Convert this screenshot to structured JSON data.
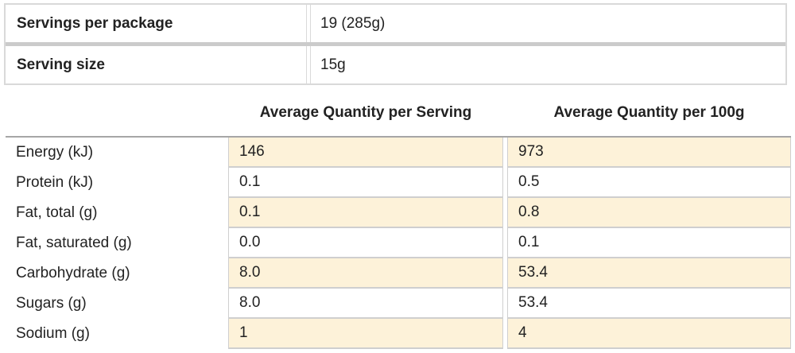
{
  "serving_info": {
    "rows": [
      {
        "label": "Servings per package",
        "value": "19 (285g)"
      },
      {
        "label": "Serving size",
        "value": "15g"
      }
    ]
  },
  "nutrition_table": {
    "headers": {
      "per_serving": "Average Quantity per Serving",
      "per_100g": "Average Quantity per 100g"
    },
    "rows": [
      {
        "label": "Energy (kJ)",
        "per_serving": "146",
        "per_100g": "973"
      },
      {
        "label": "Protein (kJ)",
        "per_serving": "0.1",
        "per_100g": "0.5"
      },
      {
        "label": "Fat, total (g)",
        "per_serving": "0.1",
        "per_100g": "0.8"
      },
      {
        "label": "Fat, saturated (g)",
        "per_serving": "0.0",
        "per_100g": "0.1"
      },
      {
        "label": "Carbohydrate (g)",
        "per_serving": "8.0",
        "per_100g": "53.4"
      },
      {
        "label": "Sugars (g)",
        "per_serving": "8.0",
        "per_100g": "53.4"
      },
      {
        "label": "Sodium (g)",
        "per_serving": "1",
        "per_100g": "4"
      }
    ]
  },
  "colors": {
    "stripe_bg": "#fdf2d9",
    "border_light": "#d9d9d9",
    "border_value_cells": "#cfcfcf",
    "row_divider": "#cbcbcb",
    "table_top_border": "#a6a6a6",
    "text": "#222222"
  }
}
